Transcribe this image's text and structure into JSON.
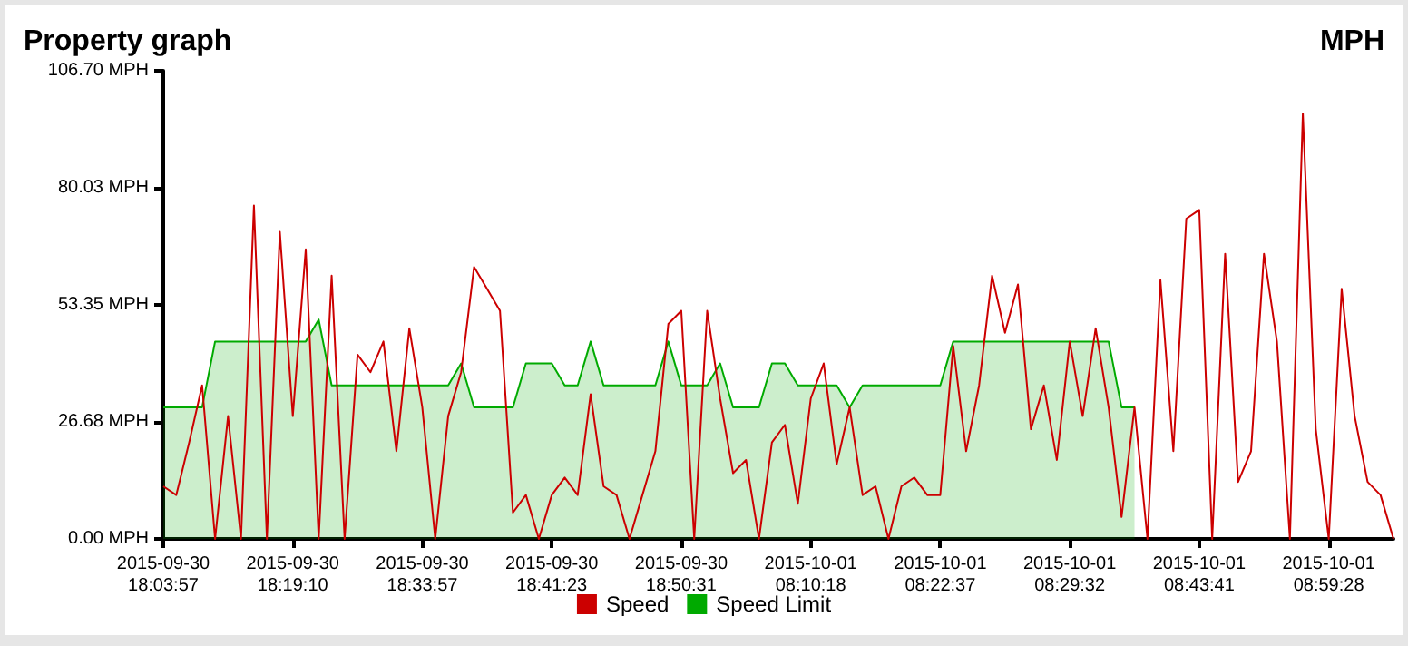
{
  "chart_data": {
    "type": "line",
    "title": "Property graph",
    "ylabel": "MPH",
    "categories": [
      "2015-09-30\n18:03:57",
      null,
      null,
      null,
      null,
      null,
      null,
      null,
      null,
      null,
      "2015-09-30\n18:19:10",
      null,
      null,
      null,
      null,
      null,
      null,
      null,
      null,
      null,
      "2015-09-30\n18:33:57",
      null,
      null,
      null,
      null,
      null,
      null,
      null,
      null,
      null,
      "2015-09-30\n18:41:23",
      null,
      null,
      null,
      null,
      null,
      null,
      null,
      null,
      null,
      "2015-09-30\n18:50:31",
      null,
      null,
      null,
      null,
      null,
      null,
      null,
      null,
      null,
      "2015-10-01\n08:10:18",
      null,
      null,
      null,
      null,
      null,
      null,
      null,
      null,
      null,
      "2015-10-01\n08:22:37",
      null,
      null,
      null,
      null,
      null,
      null,
      null,
      null,
      null,
      "2015-10-01\n08:29:32",
      null,
      null,
      null,
      null,
      null,
      null,
      null,
      null,
      null,
      "2015-10-01\n08:43:41",
      null,
      null,
      null,
      null,
      null,
      null,
      null,
      null,
      null,
      "2015-10-01\n08:59:28",
      null,
      null,
      null,
      null,
      null
    ],
    "series": [
      {
        "name": "Speed Limit",
        "type": "area",
        "color": "#00aa00",
        "values": [
          30,
          30,
          30,
          30,
          45,
          45,
          45,
          45,
          45,
          45,
          45,
          45,
          50,
          35,
          35,
          35,
          35,
          35,
          35,
          35,
          35,
          35,
          35,
          40,
          30,
          30,
          30,
          30,
          40,
          40,
          40,
          35,
          35,
          45,
          35,
          35,
          35,
          35,
          35,
          45,
          35,
          35,
          35,
          40,
          30,
          30,
          30,
          40,
          40,
          35,
          35,
          35,
          35,
          30,
          35,
          35,
          35,
          35,
          35,
          35,
          35,
          45,
          45,
          45,
          45,
          45,
          45,
          45,
          45,
          45,
          45,
          45,
          45,
          45,
          30,
          30,
          null,
          null,
          null,
          null,
          null,
          null,
          null,
          null,
          null,
          null,
          null,
          null,
          null,
          null,
          null,
          null,
          null,
          null,
          null,
          null
        ]
      },
      {
        "name": "Speed",
        "color": "#cc0000",
        "values": [
          12,
          10,
          22,
          35,
          0,
          28,
          0,
          76,
          0,
          70,
          28,
          66,
          0,
          60,
          0,
          42,
          38,
          45,
          20,
          48,
          30,
          0,
          28,
          38,
          62,
          57,
          52,
          6,
          10,
          0,
          10,
          14,
          10,
          33,
          12,
          10,
          0,
          10,
          20,
          49,
          52,
          0,
          52,
          32,
          15,
          18,
          0,
          22,
          26,
          8,
          32,
          40,
          17,
          30,
          10,
          12,
          0,
          12,
          14,
          10,
          10,
          44,
          20,
          35,
          60,
          47,
          58,
          25,
          35,
          18,
          45,
          28,
          48,
          30,
          5,
          30,
          0,
          59,
          20,
          73,
          75,
          0,
          65,
          13,
          20,
          65,
          45,
          0,
          97,
          25,
          0,
          57,
          28,
          13,
          10,
          0
        ]
      }
    ],
    "ylim": [
      0,
      106.7
    ],
    "yticks": [
      {
        "value": 0,
        "label": "0.00 MPH"
      },
      {
        "value": 26.68,
        "label": "26.68 MPH"
      },
      {
        "value": 53.35,
        "label": "53.35 MPH"
      },
      {
        "value": 80.03,
        "label": "80.03 MPH"
      },
      {
        "value": 106.7,
        "label": "106.70 MPH"
      }
    ],
    "grid": false,
    "legend": "bottom",
    "marker": "none",
    "line_style": "solid"
  }
}
